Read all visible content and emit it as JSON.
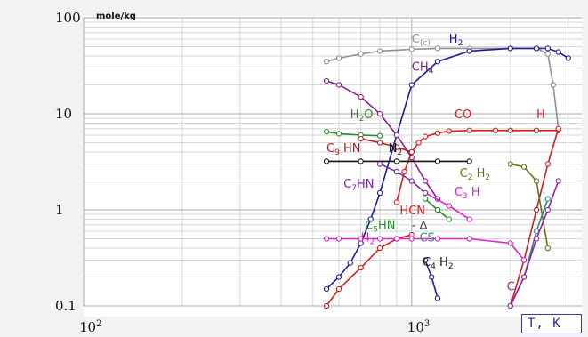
{
  "chart_data": {
    "type": "line",
    "units_label": "mole/kg",
    "x_axis": {
      "scale": "log",
      "range": [
        100,
        3300
      ],
      "ticks": [
        {
          "base": "10",
          "exp": "2"
        },
        {
          "base": "10",
          "exp": "3"
        }
      ],
      "label": "T, K"
    },
    "y_axis": {
      "scale": "log",
      "range": [
        0.1,
        100
      ],
      "tick_labels": [
        "100",
        "10",
        "1",
        "0.1"
      ],
      "tick_values": [
        100,
        10,
        1,
        0.1
      ]
    },
    "grid": true,
    "series": [
      {
        "name": "C(c)",
        "color": "#909090",
        "x": [
          550,
          600,
          700,
          800,
          1000,
          1200,
          1500,
          2000,
          2400,
          2600,
          2700,
          2800
        ],
        "y": [
          35,
          38,
          42,
          45,
          47,
          48,
          48,
          48,
          48,
          42,
          20,
          7
        ]
      },
      {
        "name": "H2",
        "color": "#1c1c9c",
        "x": [
          550,
          600,
          650,
          700,
          750,
          800,
          900,
          1000,
          1200,
          1500,
          2000,
          2400,
          2600,
          2800,
          3000
        ],
        "y": [
          0.15,
          0.2,
          0.28,
          0.45,
          0.8,
          1.5,
          6,
          20,
          35,
          45,
          48,
          48,
          48,
          44,
          38
        ]
      },
      {
        "name": "CH4",
        "color": "#8b1c8b",
        "x": [
          550,
          600,
          700,
          800,
          900,
          1000,
          1100,
          1200
        ],
        "y": [
          22,
          20,
          15,
          10,
          6,
          3.5,
          2,
          1.3
        ]
      },
      {
        "name": "H2O",
        "color": "#2a8a2a",
        "x": [
          550,
          600,
          700,
          800
        ],
        "y": [
          6.5,
          6.2,
          6.0,
          5.9
        ]
      },
      {
        "name": "CO",
        "color": "#e01818",
        "x": [
          900,
          950,
          1000,
          1050,
          1100,
          1200,
          1300,
          1500,
          1800,
          2000,
          2400,
          2800
        ],
        "y": [
          1.2,
          2.5,
          4.0,
          5.0,
          5.8,
          6.3,
          6.6,
          6.7,
          6.7,
          6.7,
          6.7,
          6.7
        ]
      },
      {
        "name": "H",
        "color": "#d02020",
        "x": [
          2000,
          2200,
          2400,
          2600,
          2800
        ],
        "y": [
          0.1,
          0.3,
          1.0,
          3.0,
          7.0
        ]
      },
      {
        "name": "C9HN",
        "color": "#b02020",
        "x": [
          700,
          800,
          900,
          1000
        ],
        "y": [
          5.5,
          5.0,
          4.5,
          4.0
        ]
      },
      {
        "name": "N2",
        "color": "#111111",
        "x": [
          550,
          700,
          900,
          1200,
          1500
        ],
        "y": [
          3.2,
          3.2,
          3.2,
          3.2,
          3.2
        ]
      },
      {
        "name": "C2H2",
        "color": "#6e6e10",
        "x": [
          2000,
          2200,
          2400,
          2600
        ],
        "y": [
          3.0,
          2.8,
          2.0,
          0.4
        ]
      },
      {
        "name": "C3H",
        "color": "#e020d0",
        "x": [
          1100,
          1300,
          1500
        ],
        "y": [
          1.5,
          1.1,
          0.8
        ]
      },
      {
        "name": "C7HN",
        "color": "#7a2aa0",
        "x": [
          800,
          900,
          1000,
          1100
        ],
        "y": [
          3.0,
          2.5,
          2.0,
          1.5
        ]
      },
      {
        "name": "HCN",
        "color": "#e01818",
        "x": [
          550,
          600,
          700,
          800,
          900,
          1000
        ],
        "y": [
          0.1,
          0.15,
          0.25,
          0.4,
          0.5,
          0.55
        ]
      },
      {
        "name": "C5HN",
        "color": "#2a8a2a",
        "x": [
          1100,
          1200,
          1300
        ],
        "y": [
          1.3,
          1.0,
          0.8
        ]
      },
      {
        "name": "H2",
        "color": "#e020d0",
        "x": [
          550,
          600,
          700,
          800,
          900,
          1000,
          1200,
          1500,
          2000,
          2200
        ],
        "y": [
          0.5,
          0.5,
          0.5,
          0.5,
          0.5,
          0.5,
          0.5,
          0.5,
          0.45,
          0.3
        ]
      },
      {
        "name": "CS",
        "color": "#2a8a8a",
        "x": [
          2000,
          2200,
          2400,
          2600
        ],
        "y": [
          0.1,
          0.2,
          0.6,
          1.3
        ]
      },
      {
        "name": "C4H2",
        "color": "#1c1c9c",
        "x": [
          1100,
          1150,
          1200
        ],
        "y": [
          0.3,
          0.2,
          0.12
        ]
      },
      {
        "name": "C",
        "color": "#a020a0",
        "x": [
          2000,
          2200,
          2400,
          2600,
          2800
        ],
        "y": [
          0.1,
          0.2,
          0.5,
          1.0,
          2.0
        ]
      }
    ],
    "labels": [
      {
        "text": "C",
        "sub": "(c)",
        "color": "#909090",
        "x": 1000,
        "y": 55
      },
      {
        "text": "H",
        "sub": "2",
        "color": "#1c1c9c",
        "x": 1300,
        "y": 55
      },
      {
        "text": "CH",
        "sub": "4",
        "color": "#8b1c8b",
        "x": 1000,
        "y": 28
      },
      {
        "text": "H",
        "sub": "2",
        "tail": "O",
        "color": "#2a8a2a",
        "x": 650,
        "y": 9
      },
      {
        "text": "CO",
        "color": "#e01818",
        "x": 1350,
        "y": 9
      },
      {
        "text": "H",
        "color": "#e01818",
        "x": 2400,
        "y": 9
      },
      {
        "text": "C",
        "sub": "9",
        "tail": " HN",
        "color": "#b02020",
        "x": 550,
        "y": 4
      },
      {
        "text": "N",
        "sub": "2",
        "color": "#111111",
        "x": 850,
        "y": 4
      },
      {
        "text": "C",
        "sub": "2",
        "tail": " H",
        "sub2": "2",
        "color": "#6e6e10",
        "x": 1400,
        "y": 2.2
      },
      {
        "text": "C",
        "sub": "3",
        "tail": " H",
        "color": "#e020d0",
        "x": 1350,
        "y": 1.4
      },
      {
        "text": "C",
        "sub": "7",
        "tail": "HN",
        "color": "#7a2aa0",
        "x": 620,
        "y": 1.7
      },
      {
        "text": "HCN",
        "color": "#e01818",
        "x": 920,
        "y": 0.9
      },
      {
        "text": "C",
        "sub": "5",
        "tail": "HN",
        "color": "#2a8a2a",
        "x": 720,
        "y": 0.63
      },
      {
        "text": "- ∆",
        "color": "#444444",
        "x": 1000,
        "y": 0.63
      },
      {
        "text": "H",
        "sub": "2",
        "color": "#e020d0",
        "x": 700,
        "y": 0.47
      },
      {
        "text": "- CS",
        "color": "#2a8a8a",
        "x": 1000,
        "y": 0.47
      },
      {
        "text": "C",
        "sub": "4",
        "tail": " H",
        "sub2": "2",
        "color": "#111111",
        "x": 1080,
        "y": 0.26
      },
      {
        "text": "C",
        "color": "#a020a0",
        "x": 1950,
        "y": 0.145
      }
    ]
  }
}
